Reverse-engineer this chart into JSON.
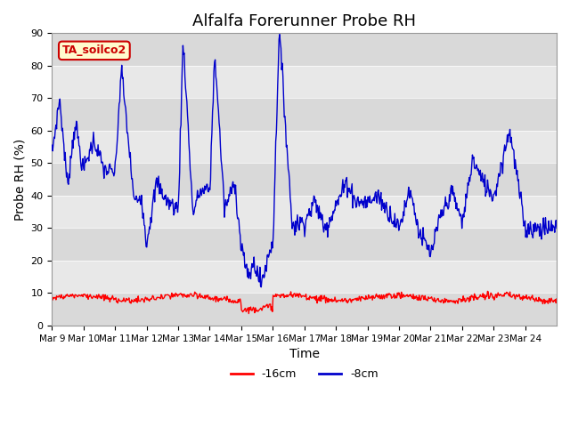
{
  "title": "Alfalfa Forerunner Probe RH",
  "ylabel": "Probe RH (%)",
  "xlabel": "Time",
  "ylim": [
    0,
    90
  ],
  "yticks": [
    0,
    10,
    20,
    30,
    40,
    50,
    60,
    70,
    80,
    90
  ],
  "xtick_labels": [
    "Mar 9",
    "Mar 10",
    "Mar 11",
    "Mar 12",
    "Mar 13",
    "Mar 14",
    "Mar 15",
    "Mar 16",
    "Mar 17",
    "Mar 18",
    "Mar 19",
    "Mar 20",
    "Mar 21",
    "Mar 22",
    "Mar 23",
    "Mar 24"
  ],
  "annotation_text": "TA_soilco2",
  "annotation_bg": "#FFFACD",
  "annotation_edgecolor": "#CC0000",
  "legend_labels": [
    "-16cm",
    "-8cm"
  ],
  "line_colors": [
    "#FF0000",
    "#0000CC"
  ],
  "plot_bg": "#E8E8E8",
  "title_fontsize": 13,
  "label_fontsize": 10
}
